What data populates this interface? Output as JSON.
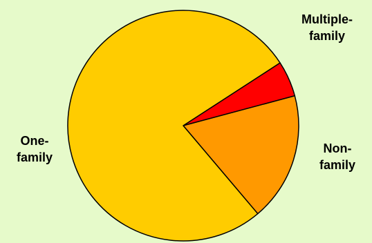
{
  "chart_data": {
    "type": "pie",
    "title": "",
    "slices": [
      {
        "label_lines": [
          "Multiple-",
          "family"
        ],
        "value": 5,
        "color": "#FF0000"
      },
      {
        "label_lines": [
          "Non-",
          "family"
        ],
        "value": 18,
        "color": "#FF9900"
      },
      {
        "label_lines": [
          "One-",
          "family"
        ],
        "value": 77,
        "color": "#FFCC00"
      }
    ],
    "start_angle_deg": 33,
    "direction": "clockwise",
    "outline_color": "#000000",
    "background": "#E6FACA"
  }
}
